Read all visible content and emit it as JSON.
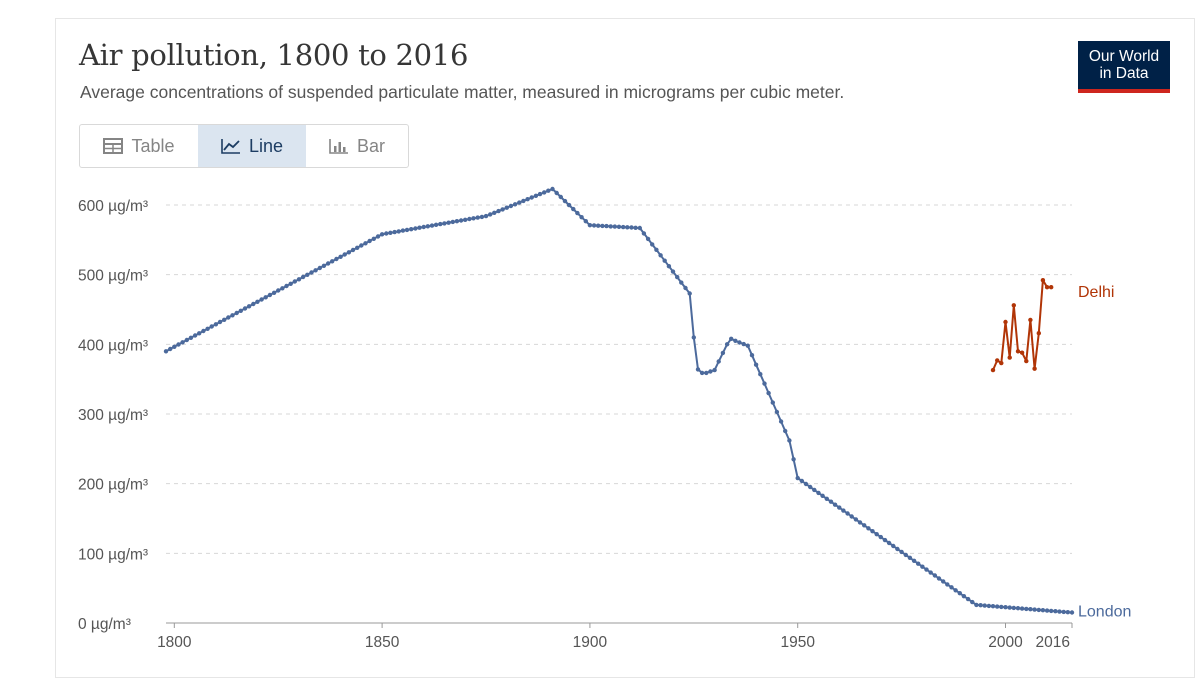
{
  "header": {
    "title": "Air pollution, 1800 to 2016",
    "subtitle": "Average concentrations of suspended particulate matter, measured in micrograms per cubic meter.",
    "logo_line1": "Our World",
    "logo_line2": "in Data"
  },
  "tabs": [
    {
      "label": "Table",
      "icon": "table-icon",
      "active": false
    },
    {
      "label": "Line",
      "icon": "line-chart-icon",
      "active": true
    },
    {
      "label": "Bar",
      "icon": "bar-chart-icon",
      "active": false
    }
  ],
  "colors": {
    "london": "#4c6a9c",
    "delhi": "#b13507",
    "grid": "#d7d7d7",
    "logo_bg": "#002147",
    "logo_accent": "#ce261e",
    "active_tab_bg": "#dbe5f0"
  },
  "chart_data": {
    "type": "line",
    "title": "Air pollution, 1800 to 2016",
    "subtitle": "Average concentrations of suspended particulate matter, measured in micrograms per cubic meter.",
    "xlabel": "",
    "ylabel": "",
    "xlim": [
      1798,
      2016
    ],
    "ylim": [
      0,
      600
    ],
    "y_ticks": [
      0,
      100,
      200,
      300,
      400,
      500,
      600
    ],
    "y_tick_labels": [
      "0 µg/m³",
      "100 µg/m³",
      "200 µg/m³",
      "300 µg/m³",
      "400 µg/m³",
      "500 µg/m³",
      "600 µg/m³"
    ],
    "x_ticks": [
      1800,
      1850,
      1900,
      1950,
      2000,
      2016
    ],
    "x_tick_labels": [
      "1800",
      "1850",
      "1900",
      "1950",
      "2000",
      "2016"
    ],
    "grid": "horizontal dashed",
    "legend": "labels at line ends",
    "series": [
      {
        "name": "London",
        "x": [
          1798,
          1850,
          1875,
          1891,
          1900,
          1912,
          1924,
          1925,
          1926,
          1927,
          1928,
          1929,
          1930,
          1933,
          1934,
          1935,
          1938,
          1948,
          1950,
          1992,
          1993,
          2016
        ],
        "y": [
          390,
          558,
          584,
          623,
          571,
          567,
          473,
          410,
          364,
          359,
          359,
          361,
          363,
          400,
          408,
          405,
          398,
          262,
          208,
          30,
          26,
          15
        ]
      },
      {
        "name": "Delhi",
        "x": [
          1997,
          1998,
          1999,
          2000,
          2001,
          2002,
          2003,
          2004,
          2005,
          2006,
          2007,
          2008,
          2009,
          2010,
          2011
        ],
        "y": [
          363,
          377,
          373,
          432,
          381,
          456,
          390,
          388,
          376,
          435,
          365,
          416,
          492,
          482,
          482
        ]
      }
    ]
  }
}
